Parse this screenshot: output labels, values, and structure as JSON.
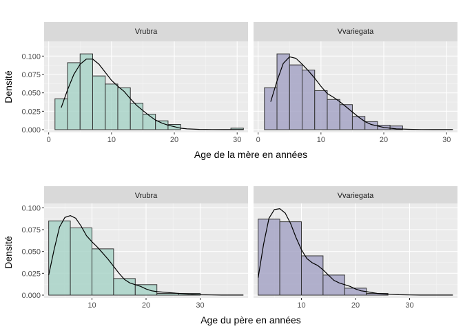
{
  "chart_data": [
    {
      "type": "histogram",
      "ylabel": "Densité",
      "xlabel": "Age de la mère en années",
      "bin_width": 2,
      "xlim": [
        0,
        31
      ],
      "ylim": [
        0,
        0.12
      ],
      "xticks": [
        0,
        10,
        20,
        30
      ],
      "yticks": [
        0.0,
        0.025,
        0.05,
        0.075,
        0.1
      ],
      "ytick_labels": [
        "0.000",
        "0.025",
        "0.050",
        "0.075",
        "0.100"
      ],
      "grid": true,
      "panels": [
        {
          "strip": "Vrubra",
          "fill": "#a9d4c8",
          "bins": [
            {
              "x0": 1,
              "x1": 3,
              "y": 0.042
            },
            {
              "x0": 3,
              "x1": 5,
              "y": 0.091
            },
            {
              "x0": 5,
              "x1": 7,
              "y": 0.103
            },
            {
              "x0": 7,
              "x1": 9,
              "y": 0.073
            },
            {
              "x0": 9,
              "x1": 11,
              "y": 0.062
            },
            {
              "x0": 11,
              "x1": 13,
              "y": 0.057
            },
            {
              "x0": 13,
              "x1": 15,
              "y": 0.036
            },
            {
              "x0": 15,
              "x1": 17,
              "y": 0.021
            },
            {
              "x0": 17,
              "x1": 19,
              "y": 0.012
            },
            {
              "x0": 19,
              "x1": 21,
              "y": 0.007
            },
            {
              "x0": 21,
              "x1": 23,
              "y": 0.0
            },
            {
              "x0": 23,
              "x1": 25,
              "y": 0.0
            },
            {
              "x0": 25,
              "x1": 27,
              "y": 0.0
            },
            {
              "x0": 27,
              "x1": 29,
              "y": 0.0
            },
            {
              "x0": 29,
              "x1": 31,
              "y": 0.002
            }
          ],
          "density": {
            "x": [
              2,
              3,
              4,
              5,
              6,
              7,
              8,
              9,
              10,
              11,
              12,
              13,
              14,
              15,
              16,
              17,
              18,
              19,
              20,
              21,
              22,
              24,
              26,
              28,
              30,
              31
            ],
            "y": [
              0.03,
              0.054,
              0.075,
              0.089,
              0.096,
              0.096,
              0.089,
              0.078,
              0.067,
              0.059,
              0.052,
              0.042,
              0.033,
              0.026,
              0.019,
              0.013,
              0.009,
              0.006,
              0.004,
              0.002,
              0.001,
              0.0004,
              0.0002,
              0.0001,
              0.0001,
              0.0001
            ]
          }
        },
        {
          "strip": "Vvariegata",
          "fill": "#a6a4c6",
          "bins": [
            {
              "x0": 1,
              "x1": 3,
              "y": 0.057
            },
            {
              "x0": 3,
              "x1": 5,
              "y": 0.103
            },
            {
              "x0": 5,
              "x1": 7,
              "y": 0.088
            },
            {
              "x0": 7,
              "x1": 9,
              "y": 0.081
            },
            {
              "x0": 9,
              "x1": 11,
              "y": 0.053
            },
            {
              "x0": 11,
              "x1": 13,
              "y": 0.041
            },
            {
              "x0": 13,
              "x1": 15,
              "y": 0.034
            },
            {
              "x0": 15,
              "x1": 17,
              "y": 0.018
            },
            {
              "x0": 17,
              "x1": 19,
              "y": 0.011
            },
            {
              "x0": 19,
              "x1": 21,
              "y": 0.006
            },
            {
              "x0": 21,
              "x1": 23,
              "y": 0.005
            },
            {
              "x0": 23,
              "x1": 25,
              "y": 0.0
            },
            {
              "x0": 25,
              "x1": 27,
              "y": 0.0
            },
            {
              "x0": 27,
              "x1": 29,
              "y": 0.0
            },
            {
              "x0": 29,
              "x1": 31,
              "y": 0.0
            }
          ],
          "density": {
            "x": [
              2,
              3,
              4,
              5,
              6,
              7,
              8,
              9,
              10,
              11,
              12,
              13,
              14,
              15,
              16,
              17,
              18,
              19,
              20,
              21,
              22,
              24,
              26,
              28,
              30,
              31
            ],
            "y": [
              0.038,
              0.066,
              0.09,
              0.099,
              0.097,
              0.089,
              0.08,
              0.07,
              0.059,
              0.049,
              0.044,
              0.038,
              0.031,
              0.024,
              0.017,
              0.011,
              0.007,
              0.005,
              0.003,
              0.002,
              0.001,
              0.0005,
              0.0002,
              0.0001,
              0.0001,
              0.0001
            ]
          }
        }
      ]
    },
    {
      "type": "histogram",
      "ylabel": "Densité",
      "xlabel": "Age du père en années",
      "bin_width": 4,
      "xlim": [
        2,
        38
      ],
      "ylim": [
        0,
        0.105
      ],
      "xticks": [
        10,
        20,
        30
      ],
      "yticks": [
        0.0,
        0.025,
        0.05,
        0.075,
        0.1
      ],
      "ytick_labels": [
        "0.000",
        "0.025",
        "0.050",
        "0.075",
        "0.100"
      ],
      "grid": true,
      "panels": [
        {
          "strip": "Vrubra",
          "fill": "#a9d4c8",
          "bins": [
            {
              "x0": 2,
              "x1": 6,
              "y": 0.085
            },
            {
              "x0": 6,
              "x1": 10,
              "y": 0.077
            },
            {
              "x0": 10,
              "x1": 14,
              "y": 0.053
            },
            {
              "x0": 14,
              "x1": 18,
              "y": 0.019
            },
            {
              "x0": 18,
              "x1": 22,
              "y": 0.012
            },
            {
              "x0": 22,
              "x1": 26,
              "y": 0.002
            },
            {
              "x0": 26,
              "x1": 30,
              "y": 0.002
            },
            {
              "x0": 30,
              "x1": 34,
              "y": 0.0
            },
            {
              "x0": 34,
              "x1": 38,
              "y": 0.0
            }
          ],
          "density": {
            "x": [
              2,
              3,
              4,
              5,
              6,
              7,
              8,
              9,
              10,
              11,
              12,
              13,
              14,
              15,
              16,
              17,
              18,
              19,
              20,
              21,
              22,
              24,
              26,
              28,
              30,
              32,
              34,
              36,
              38
            ],
            "y": [
              0.023,
              0.052,
              0.078,
              0.089,
              0.091,
              0.088,
              0.079,
              0.068,
              0.061,
              0.055,
              0.048,
              0.041,
              0.033,
              0.025,
              0.018,
              0.014,
              0.012,
              0.01,
              0.007,
              0.005,
              0.004,
              0.003,
              0.002,
              0.001,
              0.0004,
              0.0002,
              0.0001,
              0.0001,
              0.0001
            ]
          }
        },
        {
          "strip": "Vvariegata",
          "fill": "#a6a4c6",
          "bins": [
            {
              "x0": 2,
              "x1": 6,
              "y": 0.087
            },
            {
              "x0": 6,
              "x1": 10,
              "y": 0.084
            },
            {
              "x0": 10,
              "x1": 14,
              "y": 0.045
            },
            {
              "x0": 14,
              "x1": 18,
              "y": 0.023
            },
            {
              "x0": 18,
              "x1": 22,
              "y": 0.008
            },
            {
              "x0": 22,
              "x1": 26,
              "y": 0.002
            },
            {
              "x0": 26,
              "x1": 30,
              "y": 0.0
            },
            {
              "x0": 30,
              "x1": 34,
              "y": 0.0
            },
            {
              "x0": 34,
              "x1": 38,
              "y": 0.0
            }
          ],
          "density": {
            "x": [
              2,
              3,
              4,
              5,
              6,
              7,
              8,
              9,
              10,
              11,
              12,
              13,
              14,
              15,
              16,
              17,
              18,
              19,
              20,
              21,
              22,
              24,
              26,
              28,
              30,
              32,
              34,
              36,
              38
            ],
            "y": [
              0.02,
              0.058,
              0.088,
              0.098,
              0.099,
              0.094,
              0.082,
              0.066,
              0.052,
              0.042,
              0.037,
              0.034,
              0.029,
              0.023,
              0.017,
              0.014,
              0.012,
              0.01,
              0.007,
              0.005,
              0.004,
              0.002,
              0.001,
              0.0005,
              0.0002,
              0.0001,
              0.0001,
              0.0001,
              0.0001
            ]
          }
        }
      ]
    }
  ]
}
